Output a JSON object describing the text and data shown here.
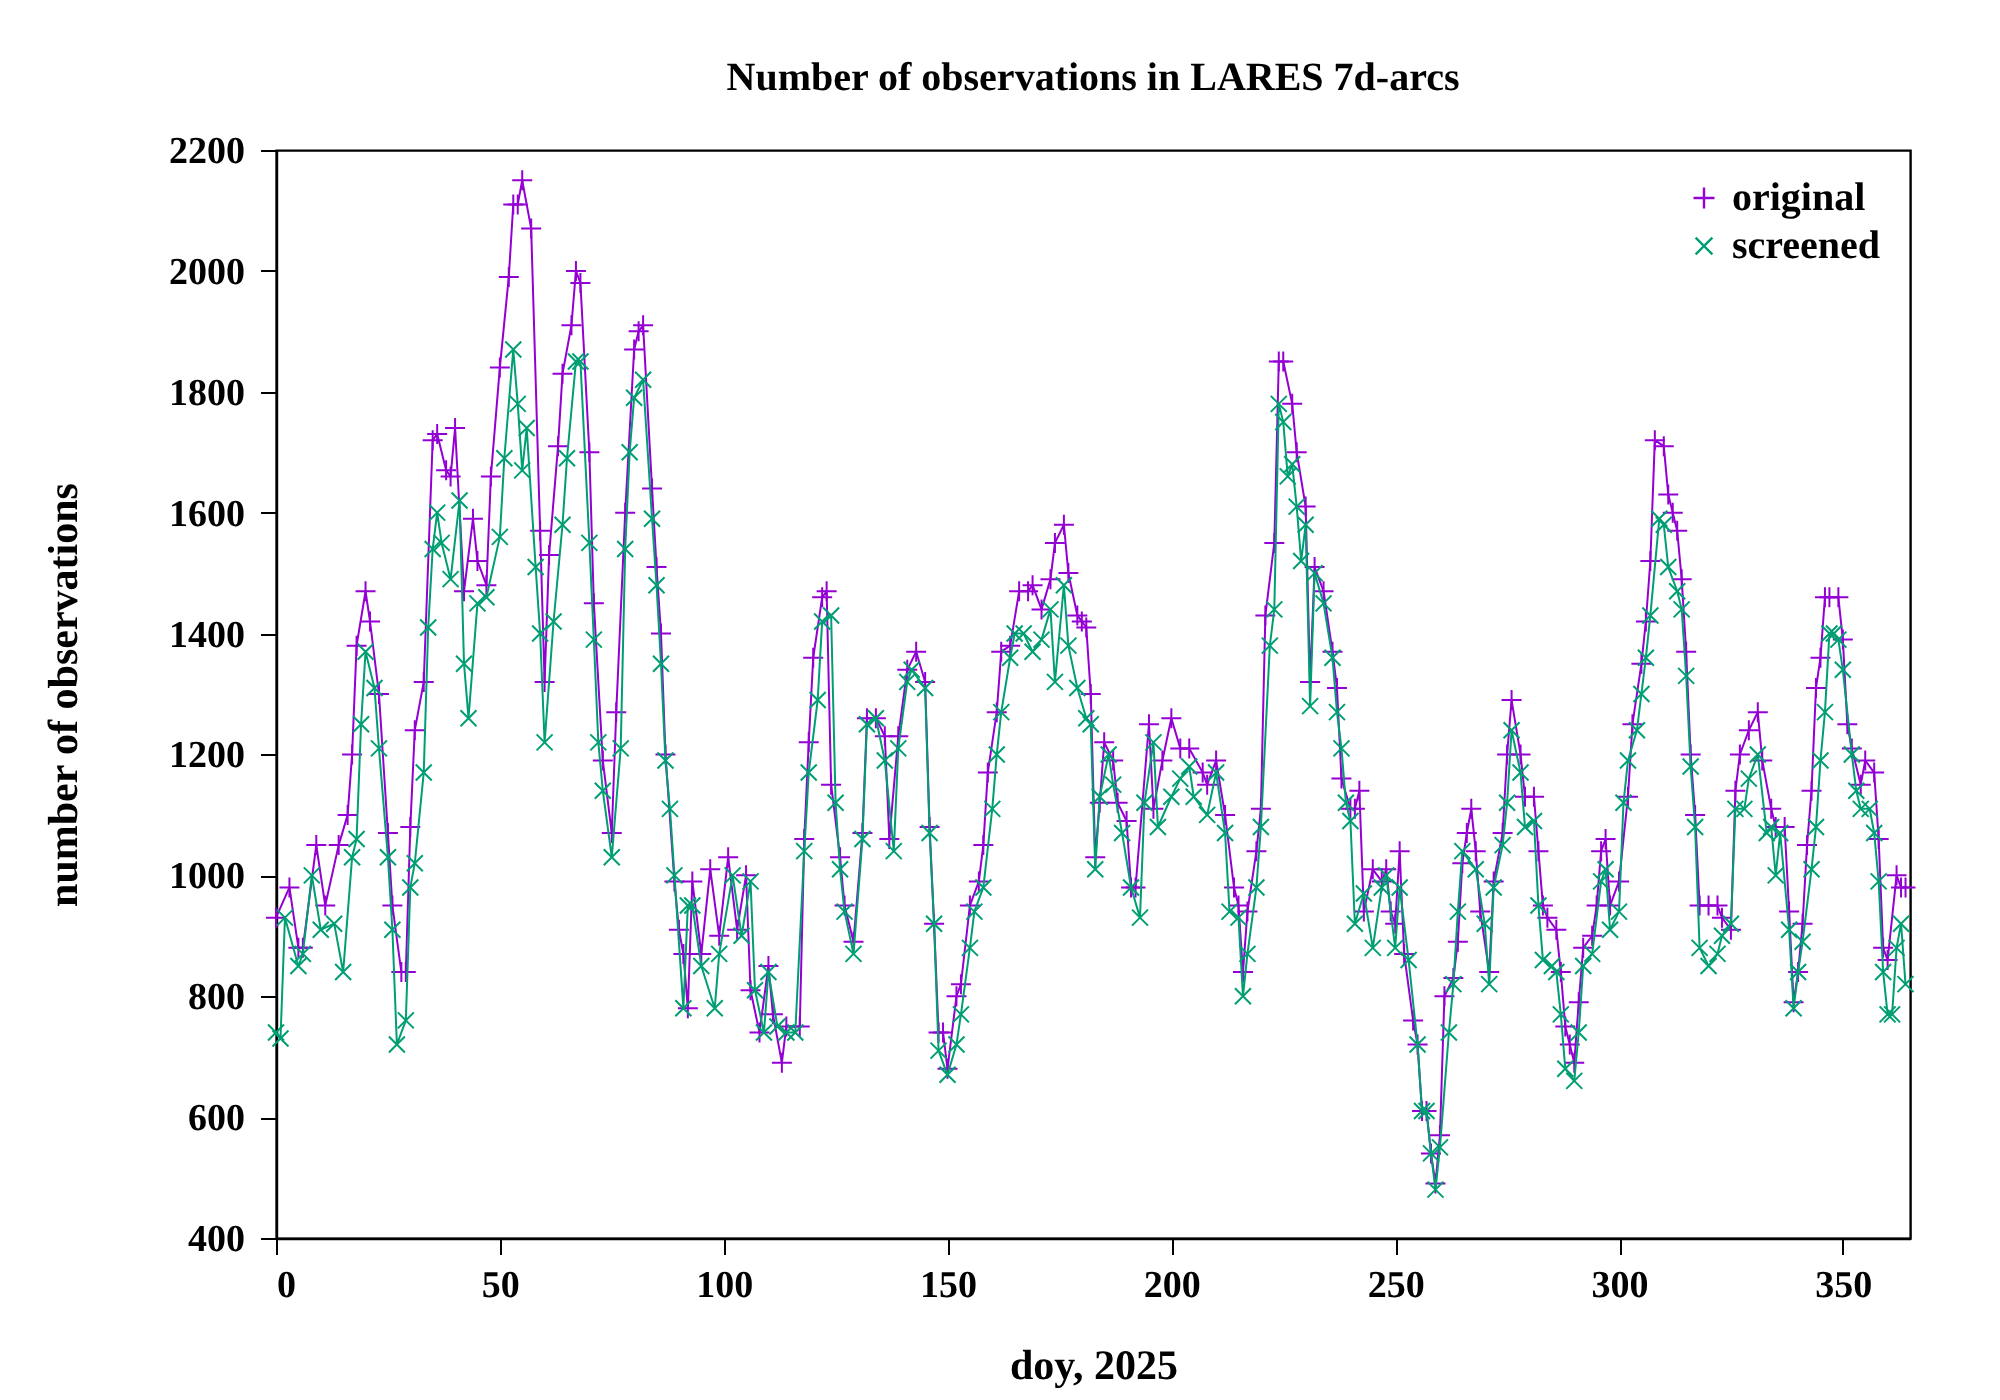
{
  "chart_data": {
    "type": "line",
    "title": "Number of observations in LARES 7d-arcs",
    "xlabel": "doy, 2025",
    "ylabel": "number of observations",
    "xlim": [
      0,
      365
    ],
    "xticks": [
      0,
      50,
      100,
      150,
      200,
      250,
      300,
      350
    ],
    "ylim": [
      400,
      2200
    ],
    "yticks": [
      400,
      600,
      800,
      1000,
      1200,
      1400,
      1600,
      1800,
      2000,
      2200
    ],
    "legend": "top right",
    "series": [
      {
        "name": "original",
        "color": "#9400d3",
        "marker": "cross",
        "x": [
          0,
          3,
          5,
          6,
          9,
          11,
          14,
          16,
          17,
          18,
          20,
          21,
          23,
          25,
          26,
          28,
          29,
          30,
          31,
          33,
          35,
          36,
          38,
          39,
          40,
          42,
          44,
          45,
          47,
          48,
          50,
          52,
          53,
          54,
          55,
          57,
          59,
          60,
          61,
          63,
          64,
          66,
          67,
          68,
          70,
          71,
          73,
          75,
          76,
          78,
          80,
          81,
          82,
          84,
          85,
          86,
          87,
          89,
          90,
          91,
          92,
          93,
          95,
          97,
          99,
          101,
          103,
          105,
          106,
          108,
          110,
          111,
          113,
          114,
          117,
          118,
          119,
          120,
          122,
          123,
          124,
          126,
          127,
          129,
          131,
          132,
          134,
          136,
          137,
          139,
          141,
          143,
          145,
          146,
          147,
          148,
          149,
          150,
          152,
          153,
          155,
          157,
          158,
          159,
          161,
          162,
          164,
          166,
          168,
          169,
          171,
          173,
          174,
          176,
          177,
          179,
          180,
          181,
          182,
          183,
          184,
          185,
          187,
          188,
          190,
          191,
          192,
          195,
          196,
          198,
          200,
          202,
          204,
          207,
          208,
          210,
          212,
          214,
          215,
          216,
          217,
          219,
          220,
          221,
          223,
          224,
          225,
          227,
          228,
          230,
          231,
          232,
          234,
          236,
          237,
          238,
          240,
          241,
          242,
          243,
          245,
          247,
          248,
          249,
          250,
          251,
          252,
          254,
          255,
          256,
          257,
          258,
          259,
          260,
          261,
          263,
          264,
          265,
          266,
          267,
          268,
          269,
          271,
          272,
          274,
          275,
          276,
          278,
          279,
          281,
          282,
          283,
          284,
          286,
          287,
          288,
          289,
          290,
          291,
          292,
          294,
          295,
          296,
          297,
          298,
          300,
          302,
          303,
          305,
          306,
          307,
          308,
          310,
          311,
          312,
          313,
          314,
          315,
          316,
          317,
          318,
          320,
          322,
          323,
          325,
          326,
          327,
          329,
          331,
          332,
          334,
          335,
          337,
          338,
          339,
          340,
          341,
          342,
          343,
          344,
          345,
          346,
          347,
          349,
          350,
          351,
          352,
          354,
          355,
          357,
          358,
          359,
          360,
          362,
          363,
          364
        ],
        "values": [
          930,
          980,
          880,
          880,
          1050,
          950,
          1050,
          1100,
          1200,
          1380,
          1470,
          1420,
          1300,
          1070,
          950,
          840,
          840,
          1080,
          1240,
          1320,
          1720,
          1730,
          1670,
          1660,
          1740,
          1470,
          1590,
          1520,
          1480,
          1660,
          1840,
          1990,
          2110,
          2110,
          2150,
          2070,
          1570,
          1320,
          1530,
          1710,
          1830,
          1910,
          2000,
          1980,
          1700,
          1450,
          1190,
          1070,
          1270,
          1600,
          1870,
          1900,
          1910,
          1640,
          1510,
          1400,
          1200,
          990,
          910,
          870,
          780,
          990,
          870,
          1010,
          900,
          1030,
          910,
          1000,
          810,
          740,
          850,
          770,
          690,
          750,
          750,
          1060,
          1220,
          1360,
          1460,
          1470,
          1150,
          1030,
          950,
          890,
          1070,
          1260,
          1260,
          1230,
          1060,
          1230,
          1340,
          1370,
          1320,
          1080,
          920,
          740,
          740,
          680,
          800,
          820,
          950,
          990,
          1050,
          1170,
          1270,
          1370,
          1380,
          1470,
          1470,
          1480,
          1440,
          1490,
          1550,
          1580,
          1500,
          1430,
          1420,
          1410,
          1300,
          1030,
          1120,
          1220,
          1190,
          1120,
          1090,
          980,
          980,
          1250,
          1110,
          1190,
          1260,
          1210,
          1210,
          1170,
          1150,
          1190,
          1100,
          980,
          950,
          840,
          940,
          1040,
          1110,
          1430,
          1550,
          1850,
          1850,
          1780,
          1700,
          1610,
          1320,
          1510,
          1470,
          1370,
          1310,
          1160,
          1110,
          1110,
          1140,
          940,
          1010,
          990,
          1010,
          940,
          920,
          1040,
          870,
          760,
          720,
          610,
          610,
          540,
          490,
          570,
          800,
          830,
          890,
          1020,
          1070,
          1110,
          1040,
          940,
          840,
          990,
          1070,
          1200,
          1290,
          1200,
          1130,
          1130,
          1040,
          950,
          930,
          910,
          840,
          750,
          720,
          690,
          790,
          880,
          900,
          950,
          1040,
          1060,
          950,
          990,
          1130,
          1250,
          1350,
          1420,
          1520,
          1720,
          1710,
          1630,
          1600,
          1570,
          1490,
          1370,
          1200,
          1100,
          950,
          950,
          950,
          930,
          910,
          1140,
          1200,
          1240,
          1270,
          1190,
          1110,
          1080,
          1080,
          940,
          790,
          840,
          920,
          1050,
          1140,
          1310,
          1360,
          1460,
          1460,
          1460,
          1390,
          1250,
          1210,
          1150,
          1190,
          1170,
          1060,
          880,
          860,
          1000,
          980,
          980
        ]
      },
      {
        "name": "screened",
        "color": "#009e73",
        "marker": "x",
        "x": [
          0,
          1,
          2,
          5,
          6,
          8,
          10,
          13,
          15,
          17,
          18,
          19,
          20,
          22,
          23,
          25,
          26,
          27,
          29,
          30,
          31,
          33,
          34,
          35,
          36,
          37,
          39,
          41,
          42,
          43,
          45,
          47,
          50,
          51,
          53,
          54,
          55,
          56,
          58,
          59,
          60,
          62,
          64,
          65,
          67,
          68,
          70,
          71,
          72,
          73,
          75,
          77,
          78,
          79,
          80,
          82,
          84,
          85,
          86,
          87,
          88,
          89,
          91,
          92,
          93,
          95,
          98,
          99,
          102,
          104,
          106,
          107,
          109,
          110,
          112,
          114,
          116,
          118,
          119,
          121,
          122,
          124,
          125,
          126,
          127,
          129,
          131,
          132,
          134,
          136,
          138,
          139,
          141,
          142,
          145,
          146,
          147,
          148,
          150,
          152,
          153,
          155,
          156,
          158,
          160,
          161,
          162,
          164,
          165,
          167,
          169,
          171,
          173,
          174,
          176,
          177,
          179,
          181,
          182,
          183,
          184,
          186,
          187,
          189,
          191,
          193,
          194,
          196,
          197,
          200,
          202,
          204,
          205,
          208,
          210,
          212,
          213,
          215,
          216,
          217,
          219,
          220,
          222,
          223,
          224,
          225,
          226,
          227,
          228,
          229,
          230,
          231,
          232,
          234,
          236,
          237,
          238,
          239,
          240,
          241,
          243,
          245,
          247,
          248,
          250,
          251,
          253,
          255,
          256,
          257,
          258,
          259,
          260,
          262,
          263,
          264,
          265,
          268,
          270,
          271,
          272,
          274,
          275,
          276,
          278,
          279,
          281,
          282,
          283,
          285,
          286,
          287,
          288,
          290,
          291,
          292,
          294,
          296,
          297,
          298,
          300,
          301,
          302,
          304,
          305,
          306,
          307,
          309,
          310,
          311,
          313,
          314,
          315,
          316,
          317,
          318,
          320,
          322,
          323,
          325,
          326,
          328,
          329,
          331,
          333,
          334,
          335,
          336,
          338,
          339,
          340,
          341,
          343,
          344,
          345,
          346,
          347,
          348,
          349,
          350,
          352,
          353,
          354,
          356,
          357,
          358,
          359,
          360,
          361,
          362,
          363,
          364
        ],
        "values": [
          740,
          730,
          930,
          850,
          870,
          1000,
          910,
          920,
          840,
          1030,
          1060,
          1250,
          1370,
          1310,
          1210,
          1030,
          910,
          720,
          760,
          980,
          1020,
          1170,
          1410,
          1540,
          1600,
          1550,
          1490,
          1620,
          1350,
          1260,
          1450,
          1460,
          1560,
          1690,
          1870,
          1780,
          1670,
          1740,
          1510,
          1400,
          1220,
          1420,
          1580,
          1690,
          1850,
          1850,
          1550,
          1390,
          1220,
          1140,
          1030,
          1210,
          1540,
          1700,
          1790,
          1820,
          1590,
          1480,
          1350,
          1190,
          1110,
          1000,
          780,
          950,
          950,
          850,
          780,
          870,
          1000,
          900,
          990,
          810,
          740,
          840,
          750,
          740,
          740,
          1040,
          1170,
          1290,
          1420,
          1430,
          1120,
          1010,
          940,
          870,
          1060,
          1250,
          1260,
          1190,
          1040,
          1210,
          1320,
          1340,
          1310,
          1070,
          920,
          710,
          670,
          720,
          770,
          880,
          940,
          980,
          1110,
          1200,
          1270,
          1360,
          1400,
          1400,
          1370,
          1390,
          1440,
          1320,
          1480,
          1380,
          1310,
          1260,
          1250,
          1010,
          1130,
          1200,
          1150,
          1070,
          980,
          930,
          1120,
          1220,
          1080,
          1130,
          1160,
          1180,
          1130,
          1100,
          1170,
          1070,
          940,
          930,
          800,
          870,
          980,
          1080,
          1380,
          1440,
          1780,
          1750,
          1660,
          1680,
          1610,
          1520,
          1580,
          1280,
          1500,
          1450,
          1360,
          1270,
          1210,
          1120,
          1090,
          920,
          970,
          880,
          980,
          1000,
          880,
          980,
          860,
          720,
          610,
          610,
          540,
          480,
          550,
          740,
          820,
          940,
          1040,
          1010,
          920,
          820,
          980,
          1050,
          1120,
          1240,
          1170,
          1080,
          1090,
          950,
          860,
          850,
          840,
          770,
          680,
          660,
          740,
          850,
          870,
          990,
          1010,
          910,
          940,
          1120,
          1190,
          1240,
          1300,
          1360,
          1430,
          1590,
          1580,
          1510,
          1470,
          1440,
          1330,
          1180,
          1080,
          880,
          850,
          870,
          900,
          920,
          1110,
          1110,
          1160,
          1200,
          1070,
          1080,
          1000,
          1070,
          910,
          780,
          840,
          890,
          1010,
          1080,
          1190,
          1270,
          1400,
          1400,
          1390,
          1340,
          1200,
          1140,
          1110,
          1110,
          1070,
          990,
          840,
          770,
          770,
          880,
          920,
          820
        ]
      }
    ]
  }
}
